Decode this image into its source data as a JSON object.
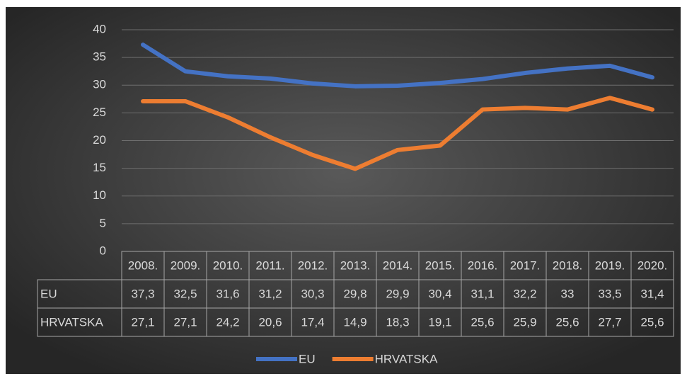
{
  "chart_data": {
    "type": "line",
    "categories": [
      "2008.",
      "2009.",
      "2010.",
      "2011.",
      "2012.",
      "2013.",
      "2014.",
      "2015.",
      "2016.",
      "2017.",
      "2018.",
      "2019.",
      "2020."
    ],
    "series": [
      {
        "name": "EU",
        "color": "#4472c4",
        "values": [
          37.3,
          32.5,
          31.6,
          31.2,
          30.3,
          29.8,
          29.9,
          30.4,
          31.1,
          32.2,
          33,
          33.5,
          31.4
        ],
        "value_labels": [
          "37,3",
          "32,5",
          "31,6",
          "31,2",
          "30,3",
          "29,8",
          "29,9",
          "30,4",
          "31,1",
          "32,2",
          "33",
          "33,5",
          "31,4"
        ]
      },
      {
        "name": "HRVATSKA",
        "color": "#ed7d31",
        "values": [
          27.1,
          27.1,
          24.2,
          20.6,
          17.4,
          14.9,
          18.3,
          19.1,
          25.6,
          25.9,
          25.6,
          27.7,
          25.6
        ],
        "value_labels": [
          "27,1",
          "27,1",
          "24,2",
          "20,6",
          "17,4",
          "14,9",
          "18,3",
          "19,1",
          "25,6",
          "25,9",
          "25,6",
          "27,7",
          "25,6"
        ]
      }
    ],
    "ylim": [
      0,
      40
    ],
    "yticks": [
      0,
      5,
      10,
      15,
      20,
      25,
      30,
      35,
      40
    ],
    "grid": true,
    "legend": "bottom"
  }
}
